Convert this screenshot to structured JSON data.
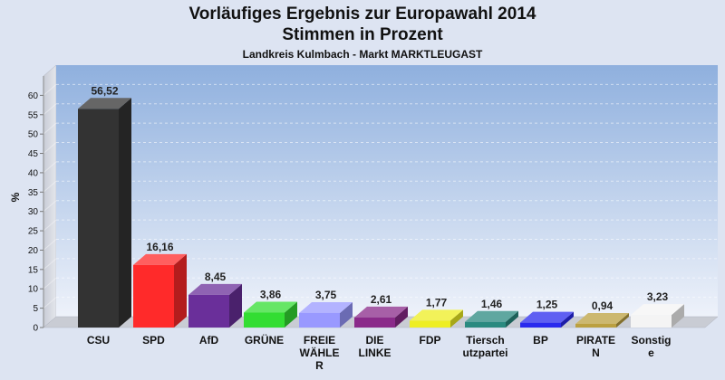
{
  "title": "Vorläufiges Ergebnis zur Europawahl 2014",
  "subtitle": "Stimmen in Prozent",
  "region": "Landkreis Kulmbach - Markt MARKTLEUGAST",
  "chart_data": {
    "type": "bar",
    "title": "Vorläufiges Ergebnis zur Europawahl 2014",
    "subtitle": "Stimmen in Prozent",
    "xlabel": "",
    "ylabel": "%",
    "ylim": [
      0,
      65
    ],
    "yticks": [
      0,
      5,
      10,
      15,
      20,
      25,
      30,
      35,
      40,
      45,
      50,
      55,
      60
    ],
    "grid": true,
    "categories": [
      [
        "CSU"
      ],
      [
        "SPD"
      ],
      [
        "AfD"
      ],
      [
        "GRÜNE"
      ],
      [
        "FREIE",
        "WÄHLE",
        "R"
      ],
      [
        "DIE",
        "LINKE"
      ],
      [
        "FDP"
      ],
      [
        "Tiersch",
        "utzpartei"
      ],
      [
        "BP"
      ],
      [
        "PIRATE",
        "N"
      ],
      [
        "Sonstig",
        "e"
      ]
    ],
    "values": [
      56.52,
      16.16,
      8.45,
      3.86,
      3.75,
      2.61,
      1.77,
      1.46,
      1.25,
      0.94,
      3.23
    ],
    "value_labels": [
      "56,52",
      "16,16",
      "8,45",
      "3,86",
      "3,75",
      "2,61",
      "1,77",
      "1,46",
      "1,25",
      "0,94",
      "3,23"
    ],
    "colors": [
      "#333333",
      "#ff2a2a",
      "#6a2f9a",
      "#33dd33",
      "#9999ff",
      "#8a2a8a",
      "#eeee22",
      "#2a8a80",
      "#2a2aee",
      "#bba040",
      "#f4f4f4"
    ]
  }
}
